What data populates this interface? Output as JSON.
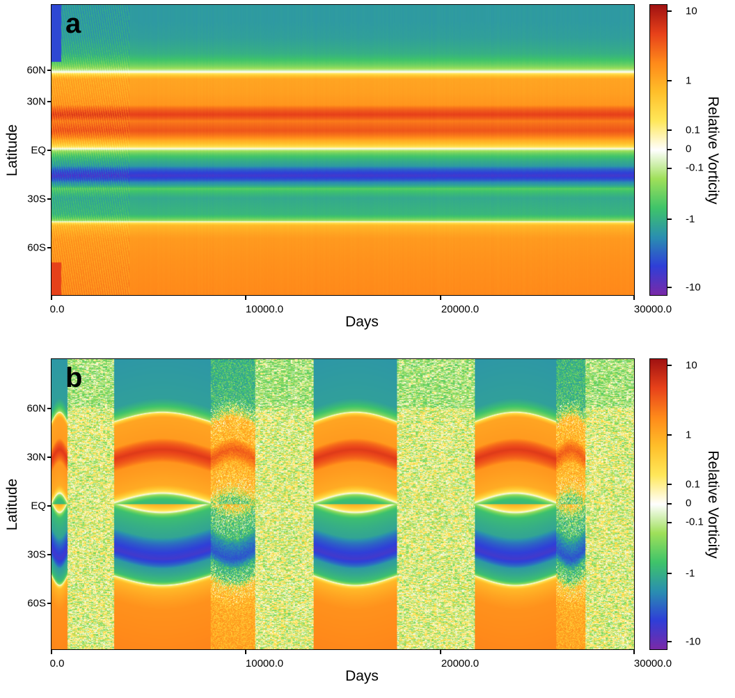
{
  "chart_data": [
    {
      "type": "heatmap",
      "panel_label": "a",
      "xlabel": "Days",
      "ylabel": "Latitude",
      "x_ticks": [
        "0.0",
        "10000.0",
        "20000.0",
        "30000.0"
      ],
      "x_tick_values": [
        0,
        10000,
        20000,
        30000
      ],
      "y_ticks": [
        "60N",
        "30N",
        "EQ",
        "30S",
        "60S"
      ],
      "y_tick_values": [
        60,
        30,
        0,
        -30,
        -60
      ],
      "xlim": [
        0,
        30000
      ],
      "ylim": [
        -90,
        90
      ],
      "colorbar": {
        "label": "Relative Vorticity",
        "ticks": [
          "10",
          "1",
          "0.1",
          "0",
          "-0.1",
          "-1",
          "-10"
        ],
        "tick_values": [
          10,
          1,
          0.1,
          0,
          -0.1,
          -1,
          -10
        ],
        "scale": "symmetric-log",
        "colormap": [
          "#7a2aa8",
          "#2f3fd8",
          "#2a8fb0",
          "#3fc46a",
          "#9fe05a",
          "#ffffff",
          "#ffe85a",
          "#ffbf2a",
          "#ff8a1a",
          "#e8421a",
          "#a01212"
        ]
      },
      "spinup_end_day": 4000,
      "rows": [
        {
          "lat": 90,
          "value": -1.2
        },
        {
          "lat": 80,
          "value": -1.2
        },
        {
          "lat": 70,
          "value": -1.1
        },
        {
          "lat": 60,
          "value": -0.8
        },
        {
          "lat": 52,
          "value": -0.25
        },
        {
          "lat": 48,
          "value": 0.05
        },
        {
          "lat": 44,
          "value": 0.9
        },
        {
          "lat": 35,
          "value": 1.0
        },
        {
          "lat": 28,
          "value": 1.2
        },
        {
          "lat": 22,
          "value": 4.0
        },
        {
          "lat": 18,
          "value": 1.8
        },
        {
          "lat": 12,
          "value": 3.0
        },
        {
          "lat": 6,
          "value": 0.8
        },
        {
          "lat": 1,
          "value": 0.02
        },
        {
          "lat": -3,
          "value": -0.4
        },
        {
          "lat": -10,
          "value": -1.2
        },
        {
          "lat": -16,
          "value": -5.0
        },
        {
          "lat": -20,
          "value": -1.6
        },
        {
          "lat": -24,
          "value": -0.4
        },
        {
          "lat": -30,
          "value": -0.9
        },
        {
          "lat": -40,
          "value": -0.7
        },
        {
          "lat": -44,
          "value": -0.15
        },
        {
          "lat": -47,
          "value": 0.6
        },
        {
          "lat": -55,
          "value": 1.1
        },
        {
          "lat": -70,
          "value": 1.3
        },
        {
          "lat": -90,
          "value": 1.5
        }
      ]
    },
    {
      "type": "heatmap",
      "panel_label": "b",
      "xlabel": "Days",
      "ylabel": "Latitude",
      "x_ticks": [
        "0.0",
        "10000.0",
        "20000.0",
        "30000.0"
      ],
      "x_tick_values": [
        0,
        10000,
        20000,
        30000
      ],
      "y_ticks": [
        "60N",
        "30N",
        "EQ",
        "30S",
        "60S"
      ],
      "y_tick_values": [
        60,
        30,
        0,
        -30,
        -60
      ],
      "xlim": [
        0,
        30000
      ],
      "ylim": [
        -90,
        90
      ],
      "colorbar": {
        "label": "Relative Vorticity",
        "ticks": [
          "10",
          "1",
          "0.1",
          "0",
          "-0.1",
          "-1",
          "-10"
        ],
        "tick_values": [
          10,
          1,
          0.1,
          0,
          -0.1,
          -1,
          -10
        ],
        "scale": "symmetric-log",
        "colormap": [
          "#7a2aa8",
          "#2f3fd8",
          "#2a8fb0",
          "#3fc46a",
          "#9fe05a",
          "#ffffff",
          "#ffe85a",
          "#ffbf2a",
          "#ff8a1a",
          "#e8421a",
          "#a01212"
        ]
      },
      "regimes": [
        {
          "start_day": 0,
          "end_day": 800,
          "state": "banded"
        },
        {
          "start_day": 800,
          "end_day": 3200,
          "state": "turbulent"
        },
        {
          "start_day": 3200,
          "end_day": 8200,
          "state": "banded"
        },
        {
          "start_day": 8200,
          "end_day": 10500,
          "state": "transition"
        },
        {
          "start_day": 10500,
          "end_day": 13500,
          "state": "turbulent"
        },
        {
          "start_day": 13500,
          "end_day": 17800,
          "state": "banded"
        },
        {
          "start_day": 17800,
          "end_day": 21800,
          "state": "turbulent"
        },
        {
          "start_day": 21800,
          "end_day": 26000,
          "state": "banded"
        },
        {
          "start_day": 26000,
          "end_day": 27500,
          "state": "transition"
        },
        {
          "start_day": 27500,
          "end_day": 30000,
          "state": "turbulent"
        }
      ]
    }
  ]
}
